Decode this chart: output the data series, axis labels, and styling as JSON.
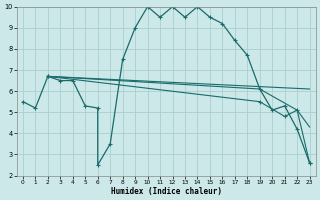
{
  "xlabel": "Humidex (Indice chaleur)",
  "xlim": [
    -0.5,
    23.5
  ],
  "ylim": [
    2,
    10
  ],
  "xticks": [
    0,
    1,
    2,
    3,
    4,
    5,
    6,
    7,
    8,
    9,
    10,
    11,
    12,
    13,
    14,
    15,
    16,
    17,
    18,
    19,
    20,
    21,
    22,
    23
  ],
  "yticks": [
    2,
    3,
    4,
    5,
    6,
    7,
    8,
    9,
    10
  ],
  "bg_color": "#cce8e8",
  "line_color": "#1a6b6b",
  "grid_color": "#aacfcf",
  "lines": [
    {
      "x": [
        0,
        1,
        2,
        3,
        4,
        5,
        6,
        6,
        7,
        8,
        9,
        10,
        11,
        12,
        13,
        14,
        15,
        16,
        17,
        18,
        19,
        20,
        21,
        22,
        23
      ],
      "y": [
        5.5,
        5.2,
        6.7,
        6.5,
        6.5,
        5.3,
        5.2,
        2.5,
        3.5,
        7.5,
        9.0,
        10.0,
        9.5,
        10.0,
        9.5,
        10.0,
        9.5,
        9.2,
        8.4,
        7.7,
        6.1,
        5.1,
        5.3,
        4.2,
        2.6
      ],
      "lw": 0.9,
      "ms": 3.5
    },
    {
      "x": [
        2,
        23
      ],
      "y": [
        6.7,
        6.1
      ],
      "lw": 0.8,
      "ms": 0
    },
    {
      "x": [
        2,
        19,
        22,
        23
      ],
      "y": [
        6.7,
        6.1,
        5.1,
        4.3
      ],
      "lw": 0.8,
      "ms": 0
    },
    {
      "x": [
        2,
        19,
        21,
        22,
        23
      ],
      "y": [
        6.7,
        5.5,
        4.8,
        5.1,
        2.6
      ],
      "lw": 0.8,
      "ms": 2.5
    }
  ],
  "marker": "+"
}
